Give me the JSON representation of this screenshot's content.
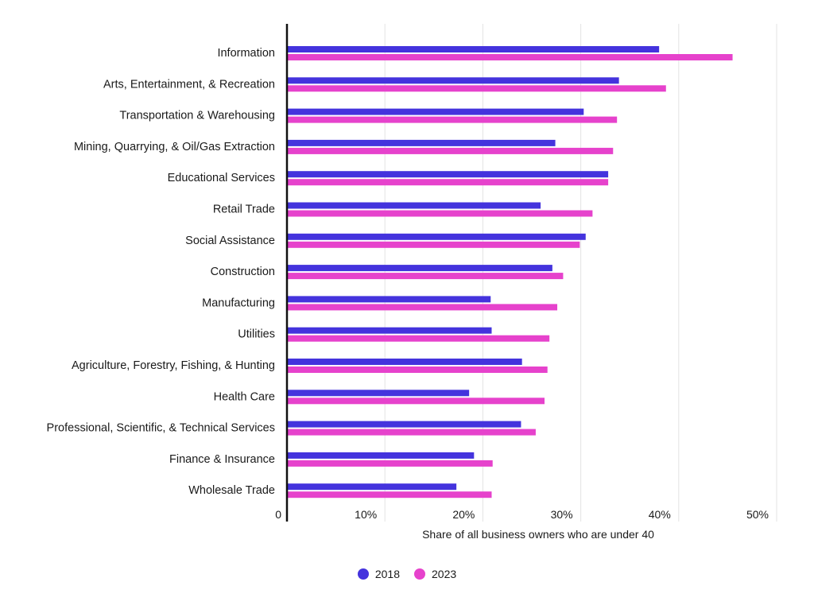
{
  "chart_data": {
    "type": "bar",
    "orientation": "horizontal",
    "categories": [
      "Information",
      "Arts, Entertainment, & Recreation",
      "Transportation & Warehousing",
      "Mining, Quarrying, & Oil/Gas Extraction",
      "Educational Services",
      "Retail Trade",
      "Social Assistance",
      "Construction",
      "Manufacturing",
      "Utilities",
      "Agriculture, Forestry, Fishing, & Hunting",
      "Health Care",
      "Professional, Scientific, & Technical Services",
      "Finance & Insurance",
      "Wholesale Trade"
    ],
    "series": [
      {
        "name": "2018",
        "color": "#4433dd",
        "values": [
          38,
          33.9,
          30.3,
          27.4,
          32.8,
          25.9,
          30.5,
          27.1,
          20.8,
          20.9,
          24,
          18.6,
          23.9,
          19.1,
          17.3
        ]
      },
      {
        "name": "2023",
        "color": "#e642cc",
        "values": [
          45.5,
          38.7,
          33.7,
          33.3,
          32.8,
          31.2,
          29.9,
          28.2,
          27.6,
          26.8,
          26.6,
          26.3,
          25.4,
          21,
          20.9
        ]
      }
    ],
    "xlabel": "Share of all business owners who are under 40",
    "ylabel": "",
    "xlim": [
      0,
      50
    ],
    "xticks": [
      0,
      10,
      20,
      30,
      40,
      50
    ],
    "xtick_labels": [
      "0",
      "10%",
      "20%",
      "30%",
      "40%",
      "50%"
    ],
    "grid": true,
    "legend_position": "bottom-center"
  }
}
